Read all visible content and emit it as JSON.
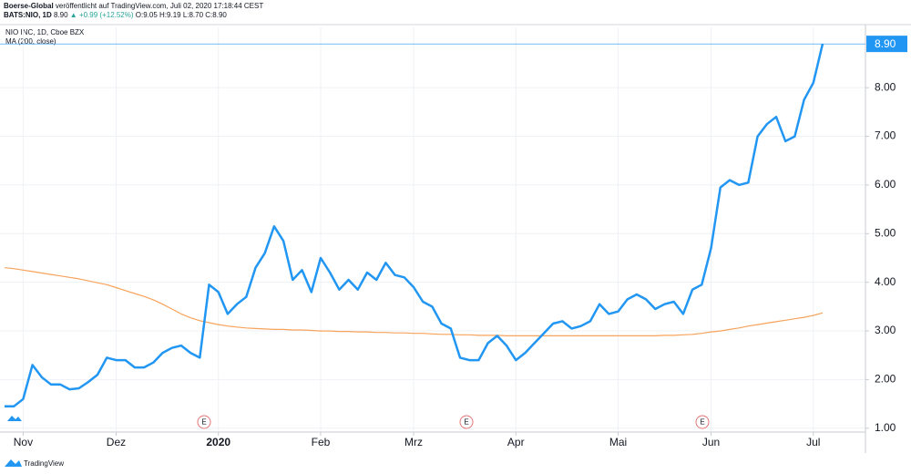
{
  "chart_data": {
    "type": "line",
    "publisher": "Boerse-Global",
    "published": "veröffentlicht auf TradingView.com, Juli 02, 2020 17:18:44 CEST",
    "symbol": "BATS:NIO, 1D",
    "quote_price": "8.90",
    "quote_change": "▲ +0.99 (+12.52%)",
    "quote_ohlc": "O:9.05 H:9.19 L:8.70 C:8.90",
    "title": "NIO INC, 1D, Cboe BZX",
    "brand": "TradingView",
    "earnings_markers": [
      "E",
      "E",
      "E"
    ],
    "last_price": {
      "value": 8.9,
      "label": "8.90"
    },
    "categories": [
      null,
      null,
      "Nov",
      null,
      null,
      null,
      null,
      null,
      null,
      null,
      null,
      null,
      "Dez",
      null,
      null,
      null,
      null,
      null,
      null,
      null,
      null,
      null,
      null,
      "2020",
      null,
      null,
      null,
      null,
      null,
      null,
      null,
      null,
      null,
      null,
      "Feb",
      null,
      null,
      null,
      null,
      null,
      null,
      null,
      null,
      null,
      "Mrz",
      null,
      null,
      null,
      null,
      null,
      null,
      null,
      null,
      null,
      null,
      "Apr",
      null,
      null,
      null,
      null,
      null,
      null,
      null,
      null,
      null,
      null,
      "Mai",
      null,
      null,
      null,
      null,
      null,
      null,
      null,
      null,
      null,
      "Jun",
      null,
      null,
      null,
      null,
      null,
      null,
      null,
      null,
      null,
      null,
      "Jul",
      null
    ],
    "series": [
      {
        "name": "NIO INC",
        "color": "#2196f3",
        "values": [
          1.45,
          1.45,
          1.6,
          2.3,
          2.05,
          1.9,
          1.9,
          1.8,
          1.82,
          1.95,
          2.1,
          2.45,
          2.4,
          2.4,
          2.25,
          2.25,
          2.35,
          2.55,
          2.65,
          2.7,
          2.55,
          2.45,
          3.95,
          3.8,
          3.35,
          3.55,
          3.7,
          4.3,
          4.6,
          5.15,
          4.85,
          4.05,
          4.25,
          3.8,
          4.5,
          4.2,
          3.85,
          4.05,
          3.85,
          4.2,
          4.05,
          4.4,
          4.15,
          4.1,
          3.9,
          3.6,
          3.5,
          3.15,
          3.05,
          2.45,
          2.4,
          2.4,
          2.75,
          2.9,
          2.7,
          2.4,
          2.55,
          2.75,
          2.95,
          3.15,
          3.2,
          3.05,
          3.1,
          3.2,
          3.55,
          3.35,
          3.4,
          3.65,
          3.75,
          3.65,
          3.45,
          3.55,
          3.6,
          3.35,
          3.85,
          3.95,
          4.7,
          5.95,
          6.1,
          6.0,
          6.05,
          7.0,
          7.25,
          7.4,
          6.9,
          7.0,
          7.75,
          8.1,
          8.9
        ]
      },
      {
        "name": "MA (200, close)",
        "color": "#f7a35c",
        "values": [
          4.3,
          4.28,
          4.25,
          4.22,
          4.19,
          4.16,
          4.13,
          4.1,
          4.07,
          4.03,
          3.99,
          3.95,
          3.89,
          3.83,
          3.77,
          3.71,
          3.64,
          3.55,
          3.45,
          3.35,
          3.27,
          3.21,
          3.17,
          3.13,
          3.1,
          3.08,
          3.06,
          3.05,
          3.04,
          3.03,
          3.03,
          3.02,
          3.02,
          3.01,
          3.0,
          3.0,
          2.99,
          2.99,
          2.98,
          2.98,
          2.97,
          2.97,
          2.96,
          2.96,
          2.95,
          2.95,
          2.94,
          2.93,
          2.93,
          2.92,
          2.92,
          2.91,
          2.91,
          2.91,
          2.9,
          2.9,
          2.9,
          2.9,
          2.9,
          2.9,
          2.9,
          2.9,
          2.9,
          2.9,
          2.9,
          2.9,
          2.9,
          2.9,
          2.9,
          2.9,
          2.9,
          2.91,
          2.91,
          2.92,
          2.93,
          2.95,
          2.98,
          3.0,
          3.03,
          3.06,
          3.1,
          3.13,
          3.16,
          3.19,
          3.22,
          3.25,
          3.28,
          3.32,
          3.37
        ]
      }
    ],
    "ylim": [
      0.94,
      9.24
    ],
    "yticks": [
      {
        "value": 1,
        "label": "1.00"
      },
      {
        "value": 2,
        "label": "2.00"
      },
      {
        "value": 3,
        "label": "3.00"
      },
      {
        "value": 4,
        "label": "4.00"
      },
      {
        "value": 5,
        "label": "5.00"
      },
      {
        "value": 6,
        "label": "6.00"
      },
      {
        "value": 7,
        "label": "7.00"
      },
      {
        "value": 8,
        "label": "8.00"
      }
    ],
    "grid": true
  }
}
